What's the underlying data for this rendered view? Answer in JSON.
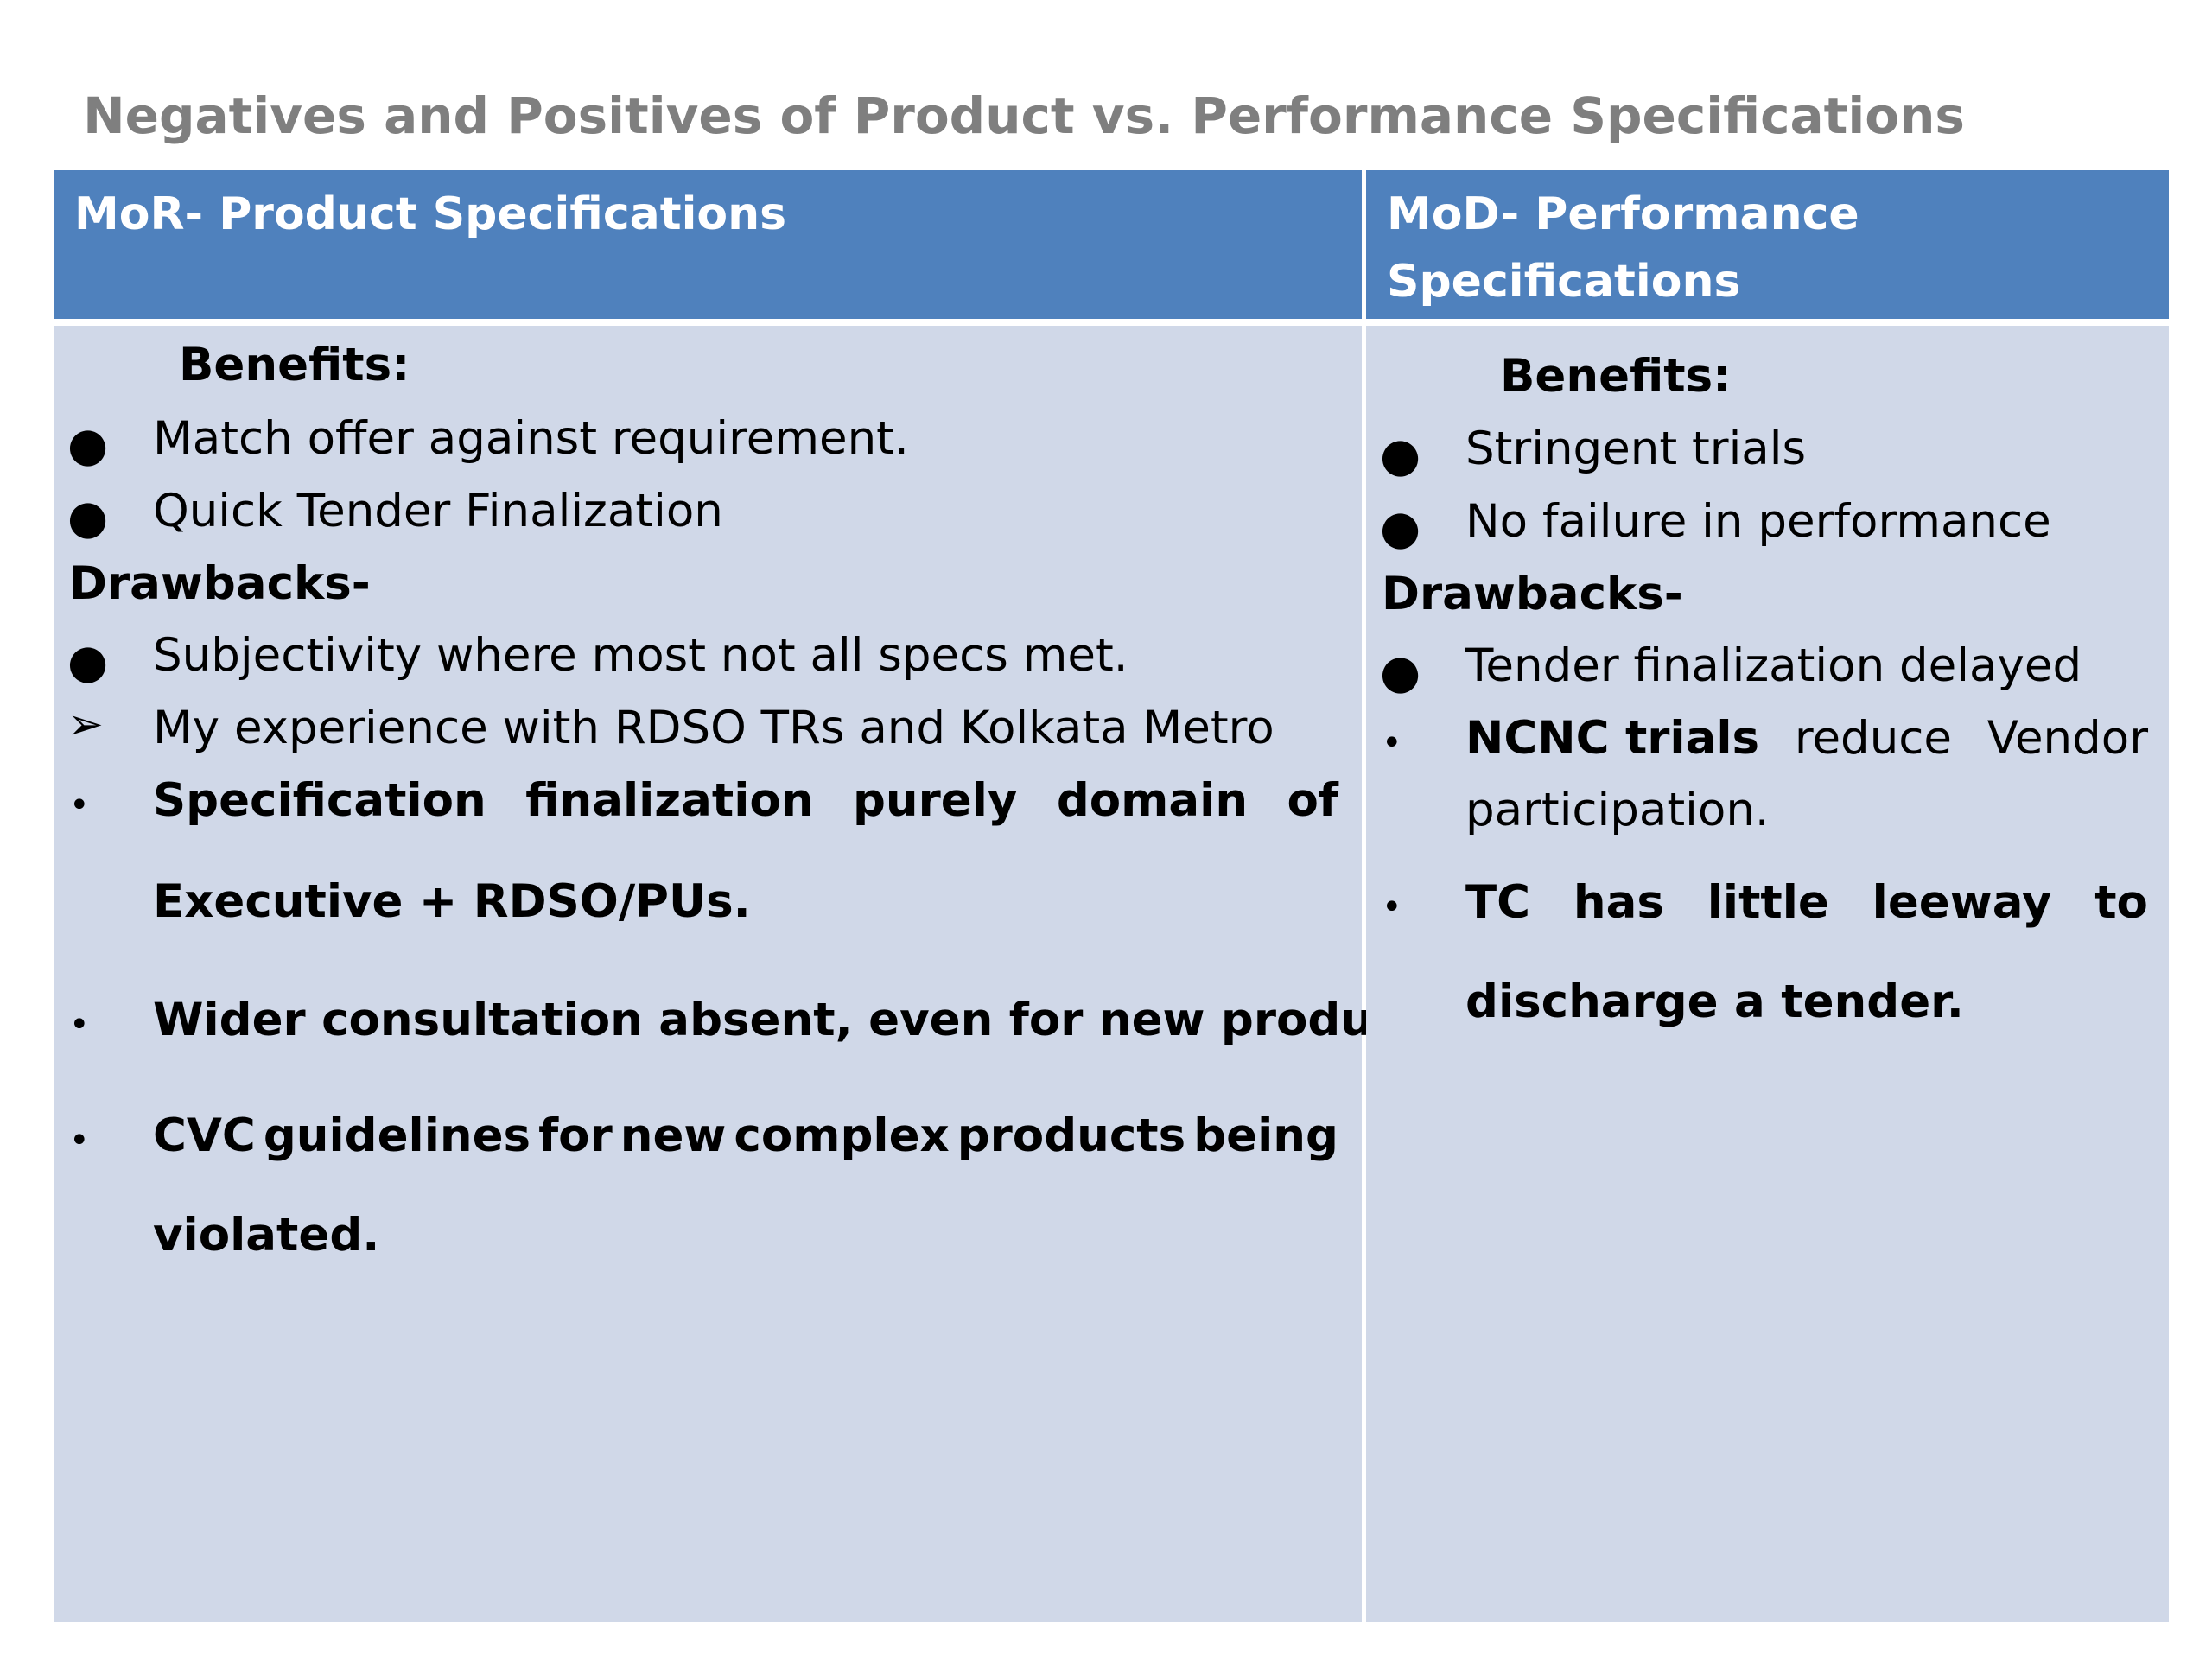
{
  "title": "Negatives and Positives of Product vs. Performance Specifications",
  "columns": {
    "left": {
      "header": "MoR- Product Specifications",
      "benefits_label": "Benefits:",
      "benefits": [
        "Match offer against requirement.",
        "Quick Tender Finalization"
      ],
      "drawbacks_label": "Drawbacks-",
      "drawback_1": "Subjectivity where most not all specs met.",
      "drawback_2": "My  experience with RDSO TRs and Kolkata Metro",
      "drawback_3_line1": [
        "Specification",
        "finalization",
        "purely",
        "domain",
        "of"
      ],
      "drawback_3_line2": "Executive + RDSO/PUs.",
      "drawback_4": "Wider consultation absent, even for new products.",
      "drawback_5_line1": [
        "CVC",
        "guidelines",
        "for",
        "new",
        "complex",
        "products",
        "being"
      ],
      "drawback_5_line2": "violated."
    },
    "right": {
      "header_line1": "MoD- Performance",
      "header_line2": "Specifications",
      "benefits_label": "Benefits:",
      "benefits": [
        "Stringent trials",
        "No failure in performance"
      ],
      "drawbacks_label": "Drawbacks-",
      "drawback_1": "Tender finalization delayed",
      "drawback_2_bold": "NCNC trials",
      "drawback_2_rest": [
        "reduce",
        "Vendor"
      ],
      "drawback_2_line2": "participation.",
      "drawback_3_line1": [
        "TC",
        "has",
        "little",
        "leeway",
        "to"
      ],
      "drawback_3_line2": "discharge a tender."
    }
  },
  "bullets": {
    "dot": "●",
    "small_dot": "•",
    "arrow": "➢"
  },
  "colors": {
    "header_bg": "#4f81bd",
    "body_bg": "#d0d8e8",
    "title": "#7f7f7f"
  }
}
